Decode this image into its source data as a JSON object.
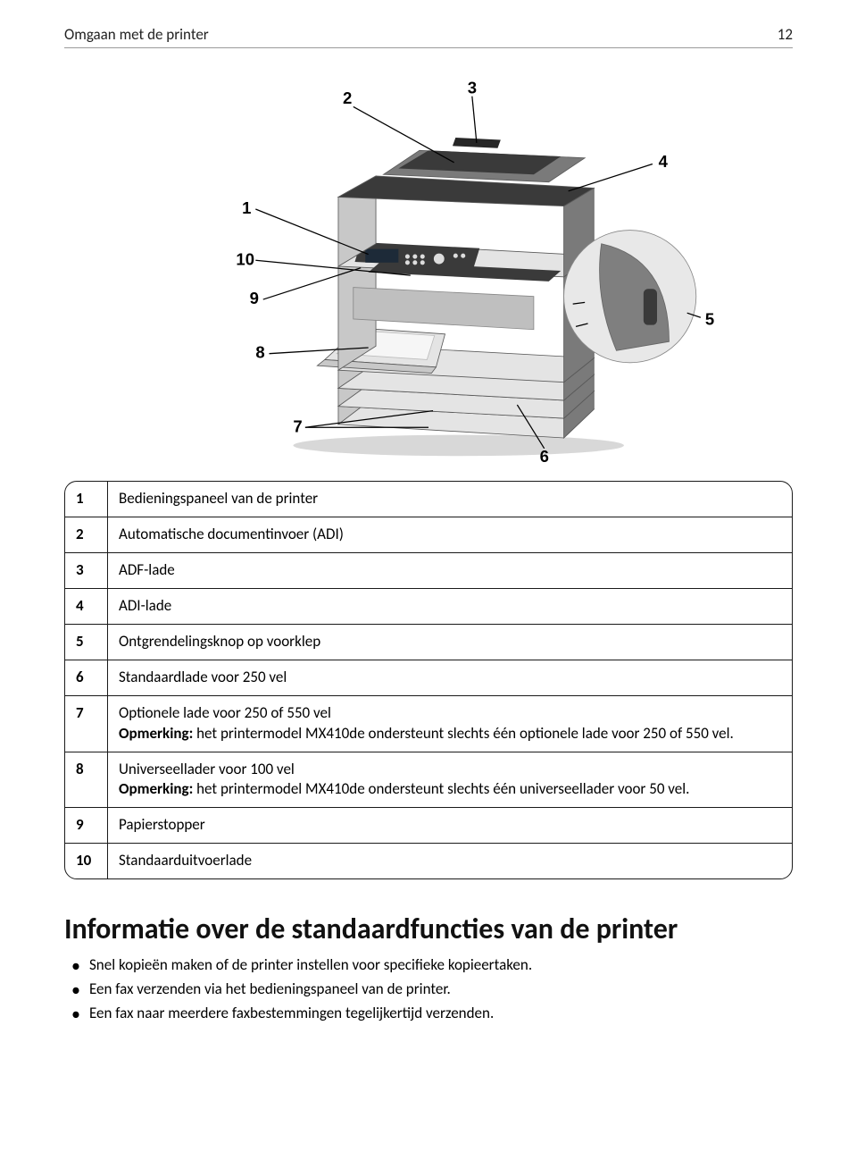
{
  "header": {
    "title": "Omgaan met de printer",
    "page_num": "12"
  },
  "diagram": {
    "callouts": [
      "1",
      "2",
      "3",
      "4",
      "5",
      "6",
      "7",
      "8",
      "9",
      "10"
    ],
    "leader_color": "#000000",
    "printer_colors": {
      "light": "#e4e4e4",
      "med": "#c8c8c8",
      "dark": "#7a7a7a",
      "panel": "#3a3a3a",
      "edge": "#5a5a5a"
    }
  },
  "legend": {
    "rows": [
      {
        "n": "1",
        "label": "Bedieningspaneel van de printer",
        "note": ""
      },
      {
        "n": "2",
        "label": "Automatische documentinvoer (ADI)",
        "note": ""
      },
      {
        "n": "3",
        "label": "ADF-lade",
        "note": ""
      },
      {
        "n": "4",
        "label": "ADI-lade",
        "note": ""
      },
      {
        "n": "5",
        "label": "Ontgrendelingsknop op voorklep",
        "note": ""
      },
      {
        "n": "6",
        "label": "Standaardlade voor 250 vel",
        "note": ""
      },
      {
        "n": "7",
        "label": "Optionele lade voor 250 of 550 vel",
        "note": "Opmerking: het printermodel MX410de ondersteunt slechts één optionele lade voor 250 of 550 vel."
      },
      {
        "n": "8",
        "label": "Universeellader voor 100 vel",
        "note": "Opmerking: het printermodel MX410de ondersteunt slechts één universeellader voor 50 vel."
      },
      {
        "n": "9",
        "label": "Papierstopper",
        "note": ""
      },
      {
        "n": "10",
        "label": "Standaarduitvoerlade",
        "note": ""
      }
    ]
  },
  "section": {
    "heading": "Informatie over de standaardfuncties van de printer",
    "bullets": [
      "Snel kopieën maken of de printer instellen voor specifieke kopieertaken.",
      "Een fax verzenden via het bedieningspaneel van de printer.",
      "Een fax naar meerdere faxbestemmingen tegelijkertijd verzenden."
    ]
  }
}
